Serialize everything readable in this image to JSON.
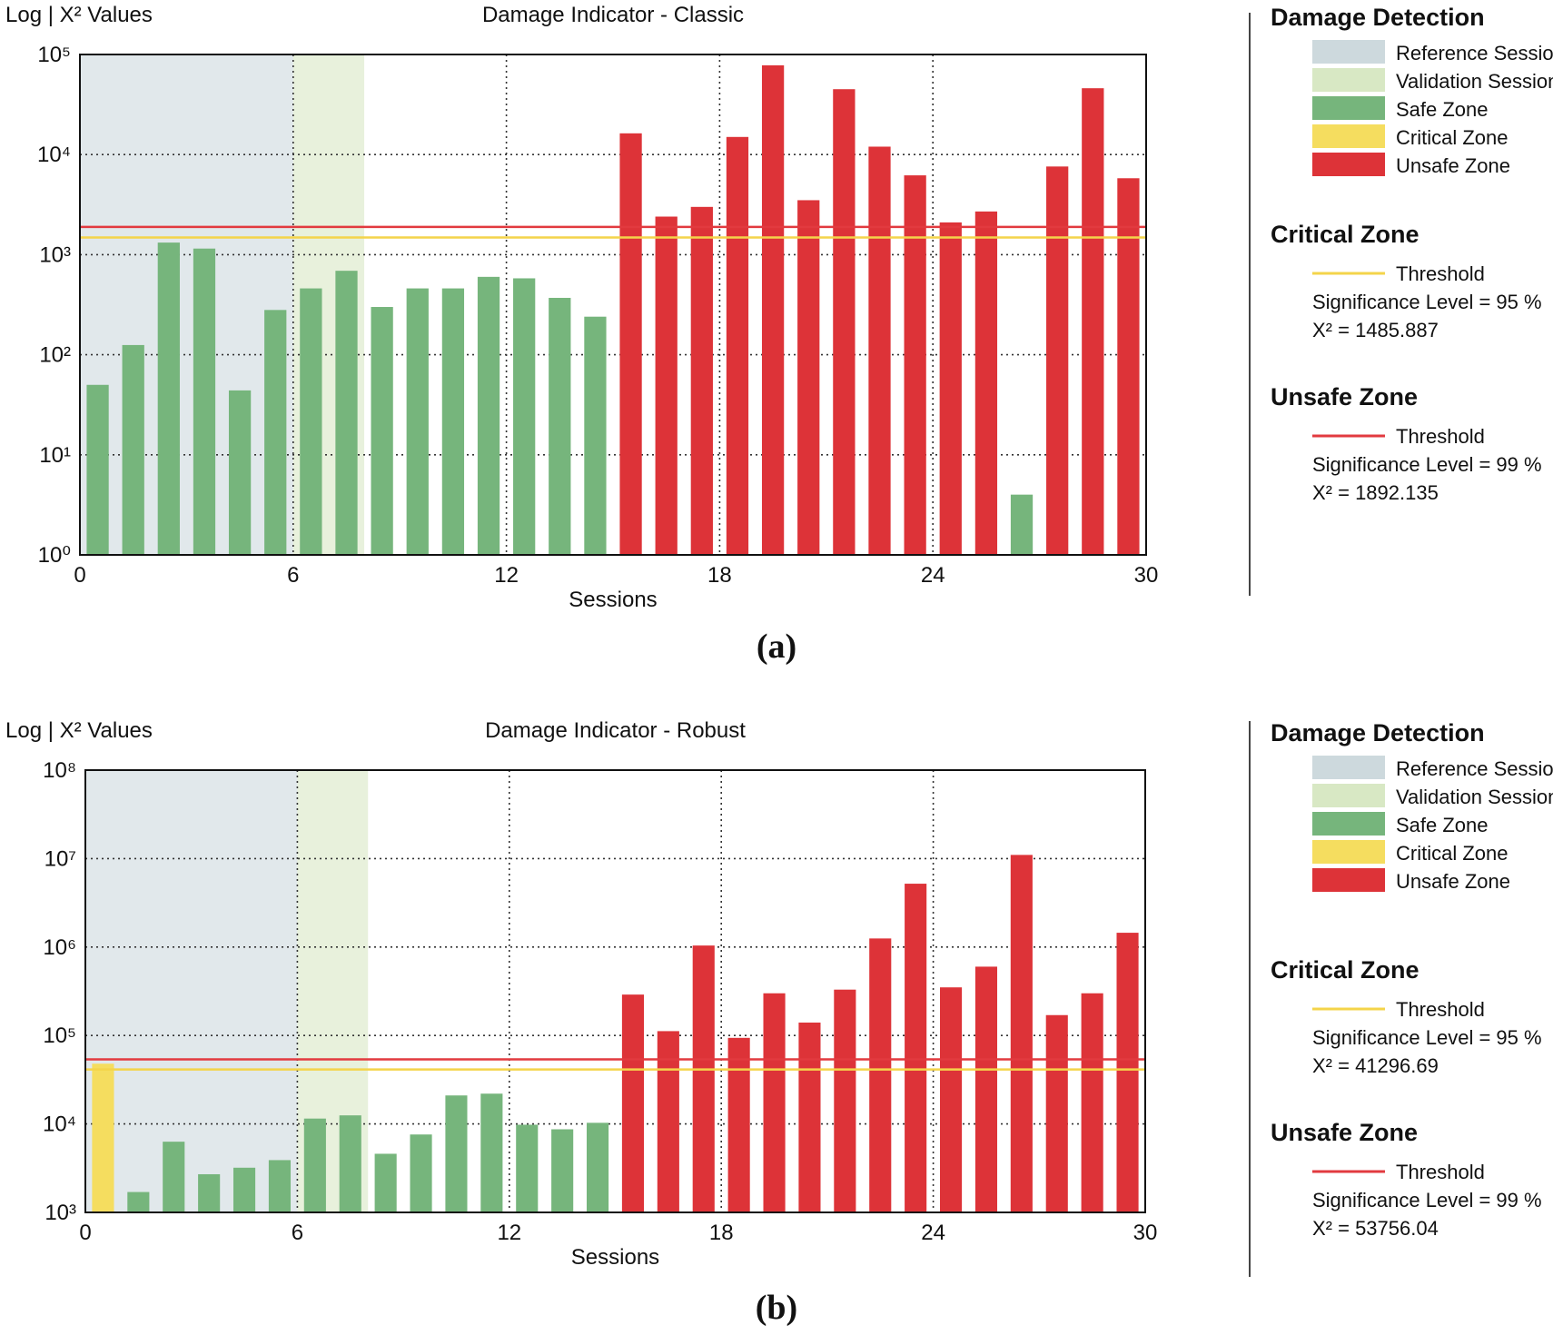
{
  "chart_data": [
    {
      "type": "bar",
      "panel_label": "(a)",
      "title": "Damage Indicator - Classic",
      "ylabel": "Log | X² Values",
      "xlabel": "Sessions",
      "yscale": "log",
      "ylim_exp": [
        0,
        5
      ],
      "y_ticks": [
        "10⁰",
        "10¹",
        "10²",
        "10³",
        "10⁴",
        "10⁵"
      ],
      "xlim": [
        0,
        30
      ],
      "x_ticks": [
        "0",
        "6",
        "12",
        "18",
        "24",
        "30"
      ],
      "reference_region": [
        0,
        6
      ],
      "validation_region": [
        6,
        8
      ],
      "thresholds": {
        "critical": 1485.887,
        "unsafe": 1892.135
      },
      "values": [
        50,
        125,
        1320,
        1150,
        44,
        280,
        460,
        690,
        300,
        460,
        460,
        600,
        580,
        370,
        240,
        16300,
        2400,
        3000,
        15000,
        78000,
        3500,
        45000,
        12000,
        6200,
        2100,
        2700,
        4,
        7600,
        46000,
        5800
      ],
      "zones": [
        "safe",
        "safe",
        "safe",
        "safe",
        "safe",
        "safe",
        "safe",
        "safe",
        "safe",
        "safe",
        "safe",
        "safe",
        "safe",
        "safe",
        "safe",
        "unsafe",
        "unsafe",
        "unsafe",
        "unsafe",
        "unsafe",
        "unsafe",
        "unsafe",
        "unsafe",
        "unsafe",
        "unsafe",
        "unsafe",
        "safe",
        "unsafe",
        "unsafe",
        "unsafe"
      ],
      "legend": {
        "title": "Damage Detection",
        "items": [
          {
            "label": "Reference Sessions",
            "color": "#cdd9dd"
          },
          {
            "label": "Validation Sessions",
            "color": "#d8e8c4"
          },
          {
            "label": "Safe Zone",
            "color": "#76b57c"
          },
          {
            "label": "Critical Zone",
            "color": "#f5dd5f"
          },
          {
            "label": "Unsafe Zone",
            "color": "#dd3338"
          }
        ]
      },
      "critical_zone": {
        "title": "Critical Zone",
        "threshold_label": "Threshold",
        "significance": "Significance Level = 95 %",
        "chi2": "X² = 1485.887"
      },
      "unsafe_zone": {
        "title": "Unsafe Zone",
        "threshold_label": "Threshold",
        "significance": "Significance Level = 99 %",
        "chi2": "X² = 1892.135"
      }
    },
    {
      "type": "bar",
      "panel_label": "(b)",
      "title": "Damage Indicator - Robust",
      "ylabel": "Log | X² Values",
      "xlabel": "Sessions",
      "yscale": "log",
      "ylim_exp": [
        3,
        8
      ],
      "y_ticks": [
        "10³",
        "10⁴",
        "10⁵",
        "10⁶",
        "10⁷",
        "10⁸"
      ],
      "xlim": [
        0,
        30
      ],
      "x_ticks": [
        "0",
        "6",
        "12",
        "18",
        "24",
        "30"
      ],
      "reference_region": [
        0,
        6
      ],
      "validation_region": [
        6,
        8
      ],
      "thresholds": {
        "critical": 41296.69,
        "unsafe": 53756.04
      },
      "values": [
        48000,
        1700,
        6300,
        2700,
        3200,
        3900,
        11500,
        12500,
        4600,
        7600,
        21000,
        22000,
        9800,
        8700,
        10300,
        290000,
        112000,
        1040000,
        94000,
        300000,
        140000,
        330000,
        1250000,
        5200000,
        350000,
        600000,
        11000000,
        170000,
        300000,
        1450000
      ],
      "zones": [
        "critical",
        "safe",
        "safe",
        "safe",
        "safe",
        "safe",
        "safe",
        "safe",
        "safe",
        "safe",
        "safe",
        "safe",
        "safe",
        "safe",
        "safe",
        "unsafe",
        "unsafe",
        "unsafe",
        "unsafe",
        "unsafe",
        "unsafe",
        "unsafe",
        "unsafe",
        "unsafe",
        "unsafe",
        "unsafe",
        "unsafe",
        "unsafe",
        "unsafe",
        "unsafe"
      ],
      "legend": {
        "title": "Damage Detection",
        "items": [
          {
            "label": "Reference Sessions",
            "color": "#cdd9dd"
          },
          {
            "label": "Validation Sessions",
            "color": "#d8e8c4"
          },
          {
            "label": "Safe Zone",
            "color": "#76b57c"
          },
          {
            "label": "Critical Zone",
            "color": "#f5dd5f"
          },
          {
            "label": "Unsafe Zone",
            "color": "#dd3338"
          }
        ]
      },
      "critical_zone": {
        "title": "Critical Zone",
        "threshold_label": "Threshold",
        "significance": "Significance Level = 95 %",
        "chi2": "X² = 41296.69"
      },
      "unsafe_zone": {
        "title": "Unsafe Zone",
        "threshold_label": "Threshold",
        "significance": "Significance Level = 99 %",
        "chi2": "X² = 53756.04"
      }
    }
  ],
  "colors": {
    "safe": "#76b57c",
    "critical": "#f5dd5f",
    "unsafe": "#dd3338",
    "reference": "#cdd9dd",
    "validation": "#d8e8c4",
    "critical_line": "#f4d44a",
    "unsafe_line": "#e23a3f"
  }
}
